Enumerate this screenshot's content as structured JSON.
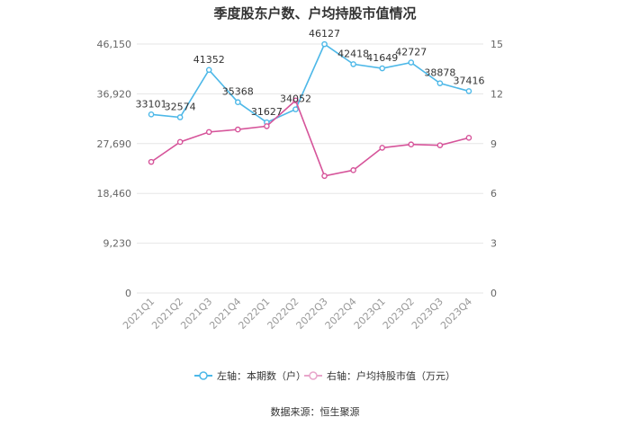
{
  "chart_data": {
    "type": "line",
    "title": "季度股东户数、户均持股市值情况",
    "categories": [
      "2021Q1",
      "2021Q2",
      "2021Q3",
      "2021Q4",
      "2022Q1",
      "2022Q2",
      "2022Q3",
      "2022Q4",
      "2023Q1",
      "2023Q2",
      "2023Q3",
      "2023Q4"
    ],
    "y_left": {
      "ticks": [
        "0",
        "9,230",
        "18,460",
        "27,690",
        "36,920",
        "46,150"
      ],
      "lim": [
        0,
        46150
      ]
    },
    "y_right": {
      "ticks": [
        "0",
        "3",
        "6",
        "9",
        "12",
        "15"
      ],
      "lim": [
        0,
        15
      ]
    },
    "series": [
      {
        "name": "左轴：本期数（户）",
        "axis": "left",
        "color": "#4DB8E8",
        "values": [
          33101,
          32574,
          41352,
          35368,
          31627,
          34052,
          46127,
          42418,
          41649,
          42727,
          38878,
          37416
        ],
        "labels": [
          "33101",
          "32574",
          "41352",
          "35368",
          "31627",
          "34052",
          "46127",
          "42418",
          "41649",
          "42727",
          "38878",
          "37416"
        ]
      },
      {
        "name": "右轴：户均持股市值（万元）",
        "axis": "right",
        "color": "#D6549A",
        "values": [
          7.9,
          9.1,
          9.7,
          9.85,
          10.05,
          11.6,
          7.05,
          7.4,
          8.75,
          8.95,
          8.9,
          9.35
        ]
      }
    ],
    "grid": true,
    "legend_position": "bottom"
  },
  "source": "数据来源：恒生聚源"
}
